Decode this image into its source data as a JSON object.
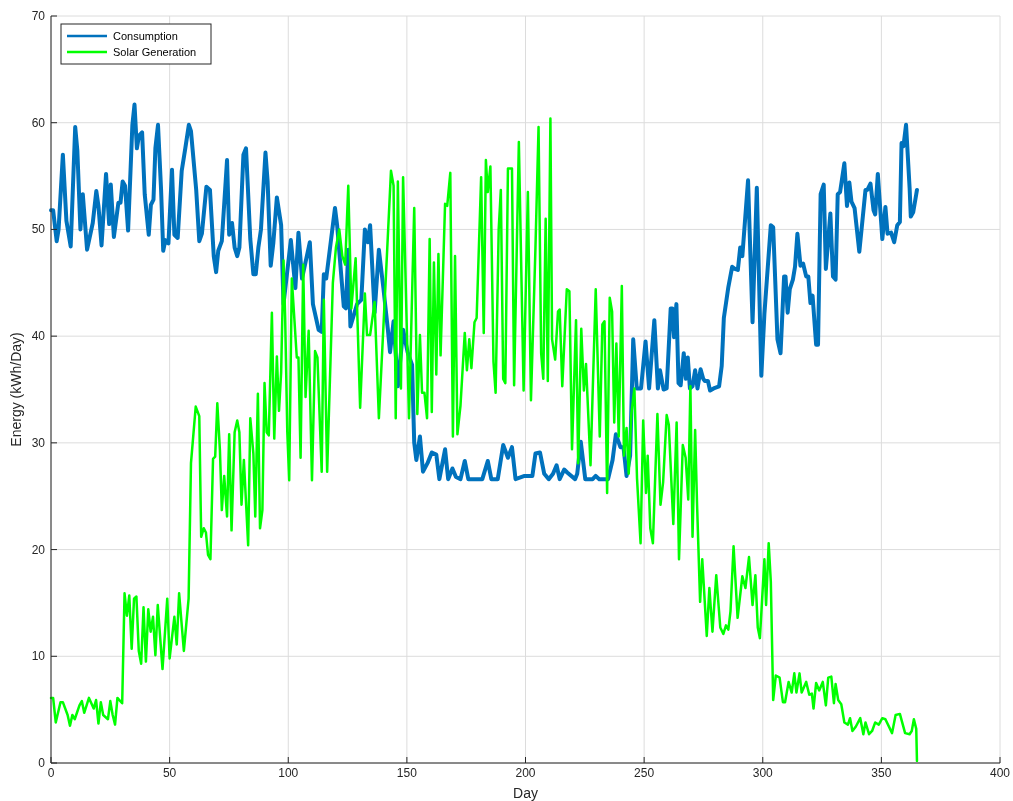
{
  "chart_data": {
    "type": "line",
    "xlabel": "Day",
    "ylabel": "Energy (kWh/Day)",
    "xlim": [
      0,
      400
    ],
    "xticks": [
      0,
      50,
      100,
      150,
      200,
      250,
      300,
      350,
      400
    ],
    "ylim": [
      0,
      70
    ],
    "yticks": [
      0,
      10,
      20,
      30,
      40,
      50,
      60,
      70
    ],
    "grid": true,
    "legend": "top left",
    "line_style": "solid",
    "marker": "none",
    "series": [
      {
        "name": "Consumption",
        "color": "#0072bd",
        "x": [
          0,
          0.9,
          2.4,
          3.2,
          5,
          6.5,
          8.3,
          10.2,
          11.1,
          12.4,
          13.4,
          15.2,
          17.6,
          19.1,
          20,
          21.3,
          23.2,
          24.5,
          25.2,
          26.5,
          28.4,
          29.3,
          30.2,
          31.2,
          32.5,
          34.3,
          35.2,
          36.2,
          37.1,
          38.4,
          39.5,
          41.2,
          42.1,
          43.2,
          44,
          45.1,
          46.4,
          47.3,
          48.2,
          49.5,
          51,
          52,
          53.4,
          55.1,
          56.6,
          58.1,
          59,
          61.2,
          62.5,
          63.6,
          65.5,
          67,
          68.6,
          69.6,
          70.5,
          72,
          74.2,
          75.1,
          76.3,
          77.4,
          78.5,
          79.4,
          81.1,
          82.2,
          84,
          85.3,
          86.3,
          87.4,
          88.5,
          90.4,
          91.3,
          92.6,
          93.7,
          95.2,
          97,
          98,
          101.1,
          103,
          104.3,
          105.8,
          109.1,
          110.4,
          112.8,
          114.1,
          115,
          116,
          119.7,
          120.6,
          123.4,
          124.3,
          125.3,
          126.2,
          129,
          130.8,
          132.3,
          133.6,
          134.5,
          136.4,
          138.2,
          140.1,
          142,
          142.9,
          144.4,
          146.2,
          148.4,
          150.3,
          152.2,
          153.1,
          154,
          155.5,
          156.8,
          158.7,
          160.5,
          162.4,
          163.7,
          166.1,
          167.4,
          169.2,
          170.7,
          172.6,
          174.4,
          175.9,
          181.8,
          184.1,
          185.6,
          188.3,
          190.6,
          192.6,
          194.3,
          195.8,
          199.6,
          202.9,
          204.2,
          206.1,
          207.9,
          209.8,
          211.6,
          213.1,
          214.4,
          216.3,
          217.7,
          220.9,
          221.8,
          223.3,
          225.2,
          228.3,
          229.6,
          231.1,
          234.8,
          236.7,
          238.1,
          240,
          241.3,
          242.6,
          244.1,
          245.4,
          246.9,
          248.7,
          250.6,
          252.1,
          254.3,
          255.8,
          256.7,
          258.2,
          259.5,
          261.2,
          261.9,
          262.6,
          263.6,
          264.5,
          265.4,
          266.7,
          267.6,
          268.4,
          269.3,
          270.4,
          271.5,
          272.5,
          273.8,
          274.9,
          275.6,
          276.9,
          277.8,
          279.3,
          281.6,
          282.7,
          283.6,
          285.5,
          287.1,
          288.2,
          289.5,
          290.5,
          291.4,
          293.8,
          295.7,
          297.5,
          299.4,
          300.7,
          303.4,
          304.4,
          306.2,
          307.5,
          309,
          309.6,
          310.5,
          311.4,
          312.7,
          313.6,
          314.6,
          315.9,
          317,
          318.3,
          319.2,
          320.1,
          321,
          322.5,
          323.3,
          324.4,
          325.7,
          326.6,
          328.5,
          329.6,
          330.7,
          331.6,
          332.6,
          334.4,
          335.5,
          336.5,
          337.4,
          338.7,
          340.7,
          343.3,
          344.1,
          345.4,
          346.7,
          347.4,
          348.5,
          350.4,
          351.7,
          352.6,
          354.1,
          355.4,
          356.7,
          357.8,
          358.5,
          359.3,
          360.4,
          361.9,
          362.4,
          363.4,
          364.7,
          365
        ],
        "values": [
          51.8,
          51.8,
          48.9,
          50,
          57,
          50.8,
          48.4,
          59.6,
          57.4,
          50,
          53.3,
          48.1,
          50.6,
          53.6,
          52.2,
          48.5,
          55.2,
          50.5,
          54.2,
          49.3,
          52.5,
          52.5,
          54.5,
          54.1,
          49.9,
          59.8,
          61.7,
          57.6,
          58.8,
          59.1,
          53.3,
          49.5,
          52.3,
          52.8,
          57.6,
          59.8,
          53.7,
          48,
          49,
          48.7,
          55.6,
          49.5,
          49.2,
          55.5,
          57.6,
          59.8,
          59.2,
          53.7,
          48.9,
          49.6,
          54,
          53.7,
          47.5,
          46,
          48,
          48.9,
          56.5,
          49.5,
          50.6,
          48.3,
          47.5,
          48.3,
          57,
          57.6,
          49.1,
          45.8,
          45.8,
          48.3,
          50,
          57.2,
          54.5,
          46.6,
          48.7,
          53,
          50.4,
          43,
          49,
          44.5,
          49.7,
          45.4,
          48.8,
          43,
          40.6,
          40.4,
          45.8,
          45.4,
          52,
          50.4,
          42.8,
          42.6,
          48.1,
          40.9,
          43,
          43.4,
          50,
          48.8,
          50.4,
          42.2,
          48.1,
          44.5,
          40.6,
          38.5,
          41.4,
          35.3,
          40.6,
          38.5,
          37.3,
          30,
          28.4,
          30.6,
          27.3,
          28.1,
          29.1,
          28.9,
          26.6,
          29.4,
          26.6,
          27.6,
          26.8,
          26.6,
          28.3,
          26.6,
          26.6,
          28.3,
          26.6,
          26.6,
          29.8,
          28.6,
          29.6,
          26.6,
          26.9,
          26.9,
          29,
          29.1,
          27.1,
          26.6,
          27.1,
          27.9,
          26.6,
          27.5,
          27.2,
          26.6,
          27.1,
          30.1,
          26.6,
          26.6,
          26.9,
          26.6,
          26.6,
          28.4,
          30.8,
          29.6,
          29.6,
          26.9,
          28.8,
          39.7,
          35.1,
          35.1,
          39.5,
          35.1,
          41.5,
          35.1,
          36.8,
          35,
          35.1,
          42.6,
          42.6,
          39.9,
          43,
          35.6,
          35.4,
          38.4,
          36,
          38,
          35.1,
          35.3,
          36.8,
          35.1,
          36.9,
          36,
          35.8,
          35.8,
          34.9,
          35.1,
          35.3,
          37.2,
          41.7,
          44.6,
          46.5,
          46.3,
          46.2,
          48.3,
          47.5,
          54.6,
          41.3,
          53.9,
          36.3,
          42.1,
          50.4,
          50.2,
          39.7,
          38.4,
          45.6,
          45.6,
          42.2,
          44.4,
          45.3,
          46.5,
          49.6,
          46.6,
          46.8,
          45.6,
          45.6,
          43.1,
          43.8,
          39.2,
          39.2,
          53.3,
          54.2,
          46.3,
          51.5,
          45.6,
          45.3,
          53.3,
          53.5,
          56.2,
          52.2,
          54.4,
          52.6,
          52,
          47.9,
          53.7,
          53.7,
          54.3,
          51.8,
          51.4,
          55.2,
          49.1,
          52.1,
          49.6,
          49.7,
          48.8,
          50.4,
          50.7,
          58.1,
          57.8,
          59.8,
          53.9,
          51.2,
          51.6,
          53.3,
          53.7
        ]
      },
      {
        "name": "Solar Generation",
        "color": "#00ff00",
        "x": [
          0,
          0.9,
          2,
          4,
          5,
          7,
          8,
          9,
          10,
          12,
          13,
          14,
          16,
          18,
          19,
          20,
          21,
          22,
          24,
          25,
          26,
          27,
          28,
          30,
          31,
          32,
          33,
          34,
          35,
          36,
          37,
          38,
          39,
          40,
          41,
          42,
          43,
          44,
          45,
          47,
          49,
          50,
          52,
          53,
          54,
          56,
          58,
          59,
          61,
          62.5,
          63.3,
          64.4,
          65.3,
          66.2,
          67.2,
          68.3,
          69.2,
          70.1,
          71.2,
          72,
          73,
          74.2,
          75.1,
          76.1,
          77.4,
          78.5,
          79.4,
          80.3,
          81.3,
          83.1,
          84,
          85.3,
          86.1,
          87.2,
          88.1,
          89.1,
          90,
          90.9,
          91.8,
          93.1,
          94.1,
          95.2,
          96.1,
          97,
          98,
          98.7,
          99.6,
          100.4,
          101.5,
          103.6,
          104.3,
          105.2,
          106.3,
          107.3,
          108.6,
          110,
          111.3,
          112.3,
          114.1,
          115,
          116.4,
          118.8,
          120.1,
          121.5,
          122.8,
          124,
          125.3,
          126.6,
          128.4,
          130.3,
          132.3,
          133.2,
          134.5,
          136.4,
          138.2,
          141.4,
          143.3,
          144.4,
          145.3,
          146.2,
          147.5,
          148.4,
          150.9,
          153.1,
          154.4,
          155.5,
          156.4,
          157.4,
          158.5,
          159.6,
          160.5,
          161.4,
          162.4,
          163.3,
          164.2,
          166.1,
          167,
          168.3,
          169.4,
          170.3,
          171.3,
          172.6,
          174.4,
          175.3,
          176.3,
          177.2,
          178.5,
          179.4,
          181.3,
          182.4,
          183.3,
          184.1,
          185.2,
          186.5,
          187.4,
          188.7,
          189.6,
          190.6,
          191.5,
          192.6,
          194.3,
          195.2,
          197.2,
          199.2,
          201,
          202.3,
          204.2,
          205.5,
          206.6,
          207.5,
          208.5,
          209.4,
          210.5,
          211.2,
          212.5,
          213.7,
          214.4,
          215.5,
          217.4,
          218.5,
          219.6,
          221.3,
          222.2,
          223.5,
          224.6,
          225.5,
          227.4,
          229.6,
          231.3,
          232.4,
          233.3,
          234.4,
          235.5,
          236.5,
          237.4,
          238.3,
          239.3,
          240.6,
          241.5,
          242.6,
          243.5,
          244.6,
          245.9,
          247,
          248.5,
          249.6,
          250.8,
          251.5,
          252.6,
          253.7,
          255.6,
          256.9,
          258,
          259.5,
          260.4,
          262.3,
          263.7,
          264.7,
          266.3,
          267.5,
          268.6,
          269.5,
          270.4,
          271.5,
          272.3,
          273.6,
          274.5,
          276.4,
          277.5,
          278.8,
          280.4,
          282.1,
          283.4,
          284.5,
          285.5,
          286.4,
          287.7,
          289.4,
          291.4,
          292.7,
          294.2,
          295.7,
          296.9,
          297.9,
          298.8,
          300.7,
          301.4,
          302.5,
          303.4,
          304.4,
          305.5,
          307.1,
          308.5,
          309.4,
          310.9,
          312.2,
          313.3,
          314.2,
          315.5,
          316.4,
          318.3,
          319.6,
          320.7,
          321.4,
          322.5,
          323.8,
          325.3,
          326.6,
          327.6,
          328.9,
          330,
          330.7,
          331.8,
          333.1,
          334.4,
          335.9,
          336.8,
          337.8,
          339.2,
          341.1,
          342.4,
          343.3,
          344.8,
          346.1,
          347.4,
          348.9,
          350.4,
          351.7,
          354.5,
          356,
          357.8,
          360,
          361.9,
          362.8,
          363.7,
          364.7,
          365
        ],
        "values": [
          6.1,
          6.1,
          3.8,
          5.7,
          5.7,
          4.5,
          3.5,
          4.5,
          4.1,
          5.4,
          5.8,
          4.7,
          6.1,
          5.1,
          5.9,
          3.7,
          5.7,
          4.5,
          4.1,
          5.8,
          4.5,
          3.6,
          6.1,
          5.6,
          15.9,
          13.8,
          15.7,
          10.7,
          15.4,
          15.6,
          10.5,
          9.3,
          14.6,
          9.5,
          14.4,
          12.3,
          13.7,
          10.1,
          14.8,
          8.8,
          15.4,
          9.8,
          13.7,
          11.1,
          15.9,
          10.5,
          15.4,
          28.1,
          33.4,
          32.5,
          21.2,
          22,
          21.6,
          19.5,
          19.1,
          28.5,
          28.7,
          33.7,
          29.3,
          23.7,
          26.9,
          23.1,
          30.8,
          21.8,
          31,
          32.1,
          31,
          24.2,
          28.4,
          20.4,
          32.3,
          29,
          23.1,
          34.6,
          22,
          23.7,
          35.6,
          31,
          30.7,
          42.2,
          30.4,
          38.1,
          33,
          36.6,
          47.1,
          41.7,
          31,
          26.5,
          45.4,
          38,
          38,
          28.6,
          46.7,
          34.3,
          40.5,
          26.5,
          38.6,
          38,
          27.3,
          43.4,
          27.3,
          45,
          48.3,
          50,
          47.5,
          46.7,
          54.1,
          42.6,
          47.3,
          33.3,
          44,
          40.1,
          40.1,
          43.2,
          32.3,
          46.7,
          55.5,
          54.1,
          32.3,
          54.5,
          35.1,
          54.9,
          32.3,
          52,
          32.7,
          40.1,
          34.7,
          34.7,
          32.3,
          49.1,
          32.9,
          46.9,
          36.4,
          47.7,
          38.2,
          52.4,
          52.2,
          55.3,
          30.6,
          47.5,
          30.8,
          33.5,
          40.3,
          36.8,
          39.7,
          37,
          41.3,
          41.7,
          54.9,
          40.3,
          56.5,
          53.5,
          55.9,
          37.6,
          34.7,
          50,
          53.7,
          36,
          35.6,
          55.7,
          55.7,
          35.4,
          58.2,
          34.9,
          53.5,
          34,
          48.3,
          59.6,
          38.4,
          36,
          51,
          35.8,
          60.4,
          39.7,
          37.8,
          42.3,
          42.5,
          35.3,
          44.4,
          44.2,
          29.4,
          41.5,
          28.1,
          40.7,
          34.9,
          37.4,
          27.9,
          44.4,
          30.6,
          41.1,
          41.4,
          25.3,
          43.6,
          42.3,
          31.9,
          39.3,
          30.6,
          44.7,
          28.8,
          31.4,
          27.1,
          32.7,
          35.1,
          26.7,
          20.6,
          32.1,
          25.3,
          28.8,
          22,
          20.6,
          32.7,
          24.2,
          26.3,
          32.6,
          31.7,
          22.4,
          31.9,
          19.1,
          29.8,
          28.6,
          24.7,
          35.3,
          21.2,
          31.2,
          24.3,
          15.1,
          19.1,
          11.9,
          16.4,
          12.3,
          17.6,
          12.7,
          12.1,
          12.9,
          12.5,
          14.2,
          20.3,
          13.6,
          17.5,
          16.4,
          19.3,
          14.8,
          17.6,
          12.7,
          11.7,
          19.1,
          14.8,
          20.6,
          17,
          5.9,
          8.2,
          8,
          5.7,
          5.7,
          7.6,
          6.6,
          8.4,
          6.6,
          8.4,
          6.6,
          7.6,
          6.4,
          6.5,
          5.1,
          7.5,
          6.8,
          7.6,
          5.4,
          8,
          8.1,
          5.6,
          7.4,
          5.9,
          5.5,
          3.8,
          3.6,
          4.2,
          3,
          3.4,
          4.2,
          2.7,
          3.8,
          2.7,
          3,
          3.8,
          3.6,
          4.2,
          4.1,
          2.8,
          4.5,
          4.6,
          2.8,
          2.7,
          3,
          4.1,
          3.2,
          0.2
        ]
      }
    ]
  }
}
